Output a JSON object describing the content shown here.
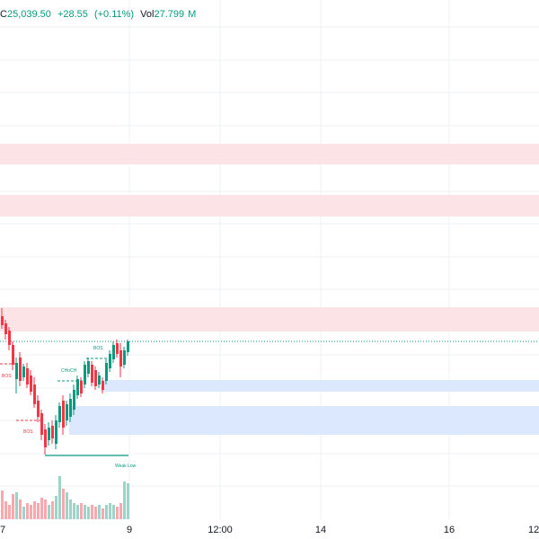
{
  "legend": {
    "close_prefix": "C",
    "close": "25,039.50",
    "change": "+28.55",
    "change_pct": "(+0.11%)",
    "vol_label": "Vol",
    "vol_value": "27.799",
    "vol_suffix": "M"
  },
  "colors": {
    "up": "#089981",
    "down": "#f23645",
    "supply_zone": "#fce4e6",
    "demand_zone": "#dbe8fd",
    "grid": "#eef0f3",
    "price_line": "#089981",
    "axis_text": "#131722",
    "vol_up": "#9ed3ca",
    "vol_down": "#f7a9ae"
  },
  "time_axis": {
    "labels": [
      "7",
      "9",
      "12:00",
      "14",
      "16",
      "12"
    ]
  },
  "annotations": {
    "bos_1": "BOS",
    "bos_2": "BOS",
    "bos_3": "BOS",
    "choch": "CHoCH",
    "weak_low": "Weak Low"
  },
  "chart_data": {
    "type": "candlestick",
    "x_labels": [
      "7",
      "9",
      "12:00",
      "14",
      "16",
      "12"
    ],
    "last_close": 25039.5,
    "change": 28.55,
    "change_pct": 0.11,
    "volume": "27.799M",
    "grid": true,
    "zones": [
      {
        "kind": "supply"
      },
      {
        "kind": "supply"
      },
      {
        "kind": "supply"
      },
      {
        "kind": "demand"
      },
      {
        "kind": "demand"
      }
    ],
    "structure_labels": [
      "BOS",
      "BOS",
      "BOS",
      "CHoCH",
      "Weak Low"
    ]
  }
}
